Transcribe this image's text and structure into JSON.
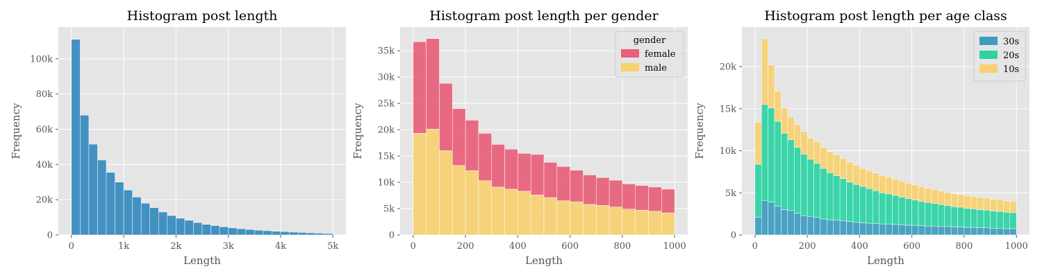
{
  "chart_data": [
    {
      "type": "bar",
      "title": "Histogram post length",
      "xlabel": "Length",
      "ylabel": "Frequency",
      "xlim": [
        -250,
        5250
      ],
      "ylim": [
        0,
        118000
      ],
      "xticks": [
        0,
        1000,
        2000,
        3000,
        4000,
        5000
      ],
      "xtick_labels": [
        "0",
        "1k",
        "2k",
        "3k",
        "4k",
        "5k"
      ],
      "yticks": [
        0,
        20000,
        40000,
        60000,
        80000,
        100000
      ],
      "ytick_labels": [
        "0",
        "20k",
        "40k",
        "60k",
        "80k",
        "100k"
      ],
      "grid": true,
      "bin_width": 166.7,
      "bins_start": [
        0,
        166.7,
        333.3,
        500,
        666.7,
        833.3,
        1000,
        1166.7,
        1333.3,
        1500,
        1666.7,
        1833.3,
        2000,
        2166.7,
        2333.3,
        2500,
        2666.7,
        2833.3,
        3000,
        3166.7,
        3333.3,
        3500,
        3666.7,
        3833.3,
        4000,
        4166.7,
        4333.3,
        4500,
        4666.7,
        4833.3
      ],
      "series": [
        {
          "name": "",
          "color": "#348ABD",
          "values": [
            111000,
            68000,
            51500,
            42500,
            35500,
            30000,
            25500,
            21500,
            18000,
            15500,
            13000,
            11000,
            9500,
            8300,
            7000,
            6000,
            5300,
            4600,
            4000,
            3500,
            3100,
            2700,
            2400,
            2100,
            1900,
            1600,
            1400,
            1200,
            1000,
            800
          ]
        }
      ]
    },
    {
      "type": "bar",
      "stacked": true,
      "title": "Histogram post length per gender",
      "xlabel": "Length",
      "ylabel": "Frequency",
      "xlim": [
        -50,
        1050
      ],
      "ylim": [
        0,
        39500
      ],
      "xticks": [
        0,
        200,
        400,
        600,
        800,
        1000
      ],
      "xtick_labels": [
        "0",
        "200",
        "400",
        "600",
        "800",
        "1000"
      ],
      "yticks": [
        0,
        5000,
        10000,
        15000,
        20000,
        25000,
        30000,
        35000
      ],
      "ytick_labels": [
        "0",
        "5k",
        "10k",
        "15k",
        "20k",
        "25k",
        "30k",
        "35k"
      ],
      "grid": true,
      "legend_title": "gender",
      "legend_position": "top-right",
      "bin_width": 50,
      "bins_start": [
        0,
        50,
        100,
        150,
        200,
        250,
        300,
        350,
        400,
        450,
        500,
        550,
        600,
        650,
        700,
        750,
        800,
        850,
        900,
        950
      ],
      "series": [
        {
          "name": "male",
          "color": "#F7D072",
          "values": [
            19300,
            20100,
            16000,
            13200,
            12200,
            10300,
            9100,
            8700,
            8300,
            7600,
            7100,
            6500,
            6300,
            5800,
            5600,
            5300,
            4900,
            4700,
            4500,
            4200
          ]
        },
        {
          "name": "female",
          "color": "#E8607A",
          "values": [
            17400,
            17200,
            12800,
            10800,
            9600,
            9000,
            8100,
            7600,
            7200,
            7700,
            6700,
            6500,
            6000,
            5600,
            5300,
            5100,
            4800,
            4700,
            4600,
            4500
          ]
        }
      ]
    },
    {
      "type": "bar",
      "stacked": true,
      "title": "Histogram post length per age class",
      "xlabel": "Length",
      "ylabel": "Frequency",
      "xlim": [
        -50,
        1050
      ],
      "ylim": [
        0,
        24700
      ],
      "xticks": [
        0,
        200,
        400,
        600,
        800,
        1000
      ],
      "xtick_labels": [
        "0",
        "200",
        "400",
        "600",
        "800",
        "1000"
      ],
      "yticks": [
        0,
        5000,
        10000,
        15000,
        20000
      ],
      "ytick_labels": [
        "0",
        "5k",
        "10k",
        "15k",
        "20k"
      ],
      "grid": true,
      "legend_position": "top-right",
      "bin_width": 25,
      "bins_start": [
        0,
        25,
        50,
        75,
        100,
        125,
        150,
        175,
        200,
        225,
        250,
        275,
        300,
        325,
        350,
        375,
        400,
        425,
        450,
        475,
        500,
        525,
        550,
        575,
        600,
        625,
        650,
        675,
        700,
        725,
        750,
        775,
        800,
        825,
        850,
        875,
        900,
        925,
        950,
        975
      ],
      "series": [
        {
          "name": "30s",
          "color": "#3E9CBF",
          "values": [
            2100,
            4100,
            3900,
            3400,
            3000,
            2900,
            2600,
            2300,
            2200,
            2100,
            1900,
            1800,
            1750,
            1700,
            1600,
            1500,
            1450,
            1400,
            1350,
            1300,
            1300,
            1250,
            1200,
            1150,
            1150,
            1100,
            1050,
            1050,
            1000,
            1000,
            950,
            950,
            900,
            900,
            850,
            850,
            800,
            800,
            750,
            750
          ]
        },
        {
          "name": "20s",
          "color": "#2ED3A4",
          "values": [
            6300,
            11400,
            11200,
            10100,
            9100,
            8400,
            7800,
            7300,
            6800,
            6400,
            6000,
            5600,
            5300,
            5000,
            4700,
            4500,
            4300,
            4100,
            3900,
            3700,
            3600,
            3450,
            3300,
            3150,
            3000,
            2900,
            2800,
            2700,
            2600,
            2500,
            2400,
            2350,
            2250,
            2200,
            2150,
            2100,
            2050,
            2000,
            1950,
            1900
          ]
        },
        {
          "name": "10s",
          "color": "#F7D072",
          "values": [
            5000,
            7800,
            5100,
            3600,
            3000,
            2700,
            2700,
            2700,
            2500,
            2600,
            2500,
            2500,
            2450,
            2400,
            2350,
            2300,
            2150,
            2150,
            2100,
            2050,
            2000,
            1950,
            1900,
            1850,
            1800,
            1750,
            1700,
            1650,
            1600,
            1550,
            1550,
            1500,
            1500,
            1450,
            1450,
            1450,
            1400,
            1400,
            1350,
            1350
          ]
        }
      ]
    }
  ]
}
